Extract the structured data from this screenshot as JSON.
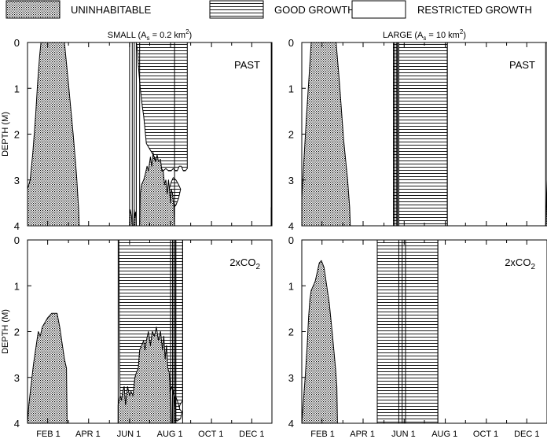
{
  "legend": [
    {
      "key": "uninhabitable",
      "label": "UNINHABITABLE",
      "fill": "dots"
    },
    {
      "key": "good",
      "label": "GOOD GROWTH",
      "fill": "lines"
    },
    {
      "key": "restricted",
      "label": "RESTRICTED GROWTH",
      "fill": "white"
    }
  ],
  "colors": {
    "stroke": "#000000",
    "background": "#ffffff",
    "stipple": "#000000"
  },
  "chart_data": [
    {
      "type": "area",
      "column_title": "SMALL (A_s = 0.2 km^2)",
      "title_parts": {
        "pre": "SMALL (A",
        "sub": "s",
        "mid": " = 0.2 km",
        "sup": "2",
        "post": ")"
      },
      "scenario": "PAST",
      "scenario_parts": {
        "main": "PAST",
        "sub": ""
      },
      "ylabel": "DEPTH (M)",
      "ylim": [
        0,
        4
      ],
      "y_ticks": [
        "0",
        "1",
        "2",
        "3",
        "4"
      ],
      "x_ticks": [
        "FEB 1",
        "APR 1",
        "JUN 1",
        "AUG 1",
        "OCT 1",
        "DEC 1"
      ],
      "show_xtick_labels": false,
      "uninhabitable": [
        [
          [
            1,
            3.2
          ],
          [
            5,
            3.0
          ],
          [
            9,
            2.4
          ],
          [
            13,
            1.6
          ],
          [
            16,
            0.9
          ],
          [
            19,
            0.3
          ],
          [
            21,
            0.0
          ],
          [
            56,
            0.0
          ],
          [
            62,
            0.9
          ],
          [
            69,
            2.0
          ],
          [
            74,
            2.9
          ],
          [
            77,
            3.6
          ],
          [
            78,
            4.0
          ],
          [
            1,
            4.0
          ]
        ],
        [
          [
            153,
            4.0
          ],
          [
            153,
            3.8
          ],
          [
            154,
            3.65
          ],
          [
            156,
            3.8
          ],
          [
            157,
            4.0
          ]
        ],
        [
          [
            159,
            4.0
          ],
          [
            160,
            3.65
          ],
          [
            161,
            3.8
          ],
          [
            162,
            3.7
          ],
          [
            163,
            4.0
          ]
        ],
        [
          [
            168,
            4.0
          ],
          [
            169,
            3.3
          ],
          [
            171,
            3.1
          ],
          [
            174,
            3.0
          ],
          [
            176,
            2.9
          ],
          [
            179,
            2.7
          ],
          [
            181,
            2.8
          ],
          [
            184,
            2.5
          ],
          [
            186,
            2.7
          ],
          [
            188,
            2.4
          ],
          [
            190,
            2.55
          ],
          [
            192,
            2.6
          ],
          [
            194,
            2.45
          ],
          [
            196,
            2.6
          ],
          [
            199,
            2.55
          ],
          [
            201,
            2.8
          ],
          [
            203,
            2.8
          ],
          [
            205,
            3.1
          ],
          [
            207,
            3.0
          ],
          [
            209,
            3.3
          ],
          [
            211,
            3.0
          ],
          [
            213,
            3.3
          ],
          [
            214,
            3.5
          ],
          [
            215,
            3.2
          ],
          [
            217,
            3.3
          ],
          [
            219,
            3.6
          ],
          [
            220,
            4.0
          ]
        ],
        [
          [
            364,
            4.0
          ],
          [
            364,
            3.6
          ],
          [
            365,
            4.0
          ]
        ]
      ],
      "good_growth": [
        [
          [
            150,
            0.0
          ],
          [
            239,
            0.0
          ],
          [
            239,
            2.75
          ],
          [
            236,
            2.8
          ],
          [
            233,
            2.8
          ],
          [
            230,
            2.7
          ],
          [
            227,
            2.7
          ],
          [
            224,
            2.8
          ],
          [
            221,
            2.8
          ],
          [
            218,
            2.75
          ],
          [
            215,
            2.8
          ],
          [
            211,
            2.8
          ],
          [
            207,
            2.75
          ],
          [
            203,
            2.8
          ],
          [
            198,
            2.7
          ],
          [
            195,
            2.7
          ],
          [
            190,
            2.5
          ],
          [
            186,
            2.4
          ],
          [
            182,
            2.3
          ],
          [
            178,
            2.2
          ],
          [
            176,
            1.9
          ],
          [
            174,
            1.6
          ],
          [
            172,
            1.4
          ],
          [
            169,
            1.0
          ],
          [
            166,
            0.5
          ],
          [
            165,
            0.2
          ],
          [
            163,
            0.0
          ]
        ],
        [
          [
            212,
            3.2
          ],
          [
            215,
            3.05
          ],
          [
            218,
            2.95
          ],
          [
            222,
            3.0
          ],
          [
            226,
            3.1
          ],
          [
            229,
            3.2
          ],
          [
            226,
            3.4
          ],
          [
            222,
            3.55
          ],
          [
            219,
            3.6
          ],
          [
            216,
            3.5
          ],
          [
            213,
            3.4
          ]
        ]
      ],
      "vertical_lines": [
        153,
        157,
        160,
        163,
        168,
        220,
        364
      ]
    },
    {
      "type": "area",
      "column_title": "LARGE (A_s = 10 km^2)",
      "title_parts": {
        "pre": "LARGE (A",
        "sub": "s",
        "mid": " = 10 km",
        "sup": "2",
        "post": ")"
      },
      "scenario": "PAST",
      "scenario_parts": {
        "main": "PAST",
        "sub": ""
      },
      "ylabel": "",
      "ylim": [
        0,
        4
      ],
      "y_ticks": [
        "0",
        "1",
        "2",
        "3",
        "4"
      ],
      "x_ticks": [
        "FEB 1",
        "APR 1",
        "JUN 1",
        "AUG 1",
        "OCT 1",
        "DEC 1"
      ],
      "show_xtick_labels": false,
      "uninhabitable": [
        [
          [
            1,
            4.0
          ],
          [
            1,
            3.4
          ],
          [
            4,
            2.6
          ],
          [
            8,
            1.6
          ],
          [
            12,
            0.7
          ],
          [
            15,
            0.0
          ],
          [
            52,
            0.0
          ],
          [
            57,
            0.9
          ],
          [
            63,
            2.1
          ],
          [
            69,
            3.0
          ],
          [
            72,
            3.6
          ],
          [
            73,
            4.0
          ]
        ],
        [
          [
            363,
            4.0
          ],
          [
            365,
            3.0
          ],
          [
            365,
            4.0
          ]
        ]
      ],
      "good_growth": [
        [
          [
            137,
            0.0
          ],
          [
            142,
            0.0
          ],
          [
            142,
            4.0
          ],
          [
            137,
            4.0
          ]
        ],
        [
          [
            145,
            0.0
          ],
          [
            217,
            0.0
          ],
          [
            217,
            4.0
          ],
          [
            145,
            4.0
          ]
        ]
      ],
      "vertical_lines": [
        137,
        139,
        142,
        143,
        145,
        217,
        363
      ]
    },
    {
      "type": "area",
      "column_title": "",
      "scenario": "2xCO2",
      "scenario_parts": {
        "main": "2xCO",
        "sub": "2"
      },
      "ylabel": "DEPTH (M)",
      "ylim": [
        0,
        4
      ],
      "y_ticks": [
        "0",
        "1",
        "2",
        "3",
        "4"
      ],
      "x_ticks": [
        "FEB 1",
        "APR 1",
        "JUN 1",
        "AUG 1",
        "OCT 1",
        "DEC 1"
      ],
      "show_xtick_labels": true,
      "uninhabitable": [
        [
          [
            1,
            4.0
          ],
          [
            3,
            3.6
          ],
          [
            6,
            3.2
          ],
          [
            10,
            2.7
          ],
          [
            14,
            2.3
          ],
          [
            17,
            2.0
          ],
          [
            20,
            2.1
          ],
          [
            23,
            1.9
          ],
          [
            27,
            1.8
          ],
          [
            31,
            1.7
          ],
          [
            37,
            1.6
          ],
          [
            45,
            1.6
          ],
          [
            49,
            1.9
          ],
          [
            53,
            2.3
          ],
          [
            56,
            2.6
          ],
          [
            59,
            2.8
          ],
          [
            60,
            4.0
          ]
        ],
        [
          [
            136,
            4.0
          ],
          [
            136,
            3.6
          ],
          [
            139,
            3.4
          ],
          [
            141,
            3.5
          ],
          [
            143,
            3.3
          ],
          [
            145,
            3.2
          ],
          [
            147,
            3.6
          ],
          [
            150,
            3.2
          ],
          [
            153,
            3.4
          ],
          [
            155,
            3.3
          ],
          [
            158,
            3.4
          ],
          [
            161,
            3.0
          ],
          [
            163,
            2.9
          ],
          [
            166,
            2.8
          ],
          [
            168,
            2.4
          ],
          [
            171,
            2.3
          ],
          [
            174,
            2.2
          ],
          [
            176,
            2.4
          ],
          [
            178,
            2.2
          ],
          [
            181,
            2.0
          ],
          [
            184,
            2.3
          ],
          [
            187,
            2.0
          ],
          [
            190,
            2.1
          ],
          [
            193,
            1.9
          ],
          [
            196,
            2.2
          ],
          [
            199,
            2.0
          ],
          [
            202,
            2.4
          ],
          [
            204,
            2.1
          ],
          [
            206,
            2.6
          ],
          [
            208,
            2.3
          ],
          [
            210,
            2.8
          ],
          [
            212,
            2.9
          ],
          [
            213,
            3.1
          ],
          [
            214,
            4.0
          ]
        ],
        [
          [
            216,
            4.0
          ],
          [
            217,
            3.3
          ],
          [
            219,
            3.4
          ],
          [
            221,
            3.7
          ],
          [
            222,
            4.0
          ]
        ]
      ],
      "good_growth": [
        [
          [
            136,
            0.0
          ],
          [
            232,
            0.0
          ],
          [
            232,
            3.5
          ],
          [
            228,
            3.6
          ],
          [
            225,
            3.8
          ],
          [
            222,
            3.6
          ],
          [
            220,
            3.6
          ],
          [
            218,
            3.3
          ],
          [
            216,
            3.2
          ],
          [
            214,
            3.3
          ],
          [
            212,
            2.95
          ],
          [
            210,
            2.85
          ],
          [
            208,
            2.4
          ],
          [
            206,
            2.7
          ],
          [
            204,
            2.2
          ],
          [
            202,
            2.5
          ],
          [
            199,
            2.0
          ],
          [
            196,
            2.3
          ],
          [
            193,
            2.0
          ],
          [
            190,
            2.15
          ],
          [
            187,
            2.0
          ],
          [
            184,
            2.35
          ],
          [
            181,
            2.05
          ],
          [
            178,
            2.3
          ],
          [
            176,
            2.45
          ],
          [
            174,
            2.25
          ],
          [
            171,
            2.35
          ],
          [
            168,
            2.45
          ],
          [
            166,
            2.8
          ],
          [
            163,
            2.95
          ],
          [
            161,
            3.0
          ],
          [
            158,
            3.45
          ],
          [
            155,
            3.35
          ],
          [
            153,
            3.45
          ],
          [
            150,
            3.25
          ],
          [
            147,
            3.65
          ],
          [
            145,
            3.25
          ],
          [
            143,
            3.35
          ],
          [
            141,
            3.5
          ],
          [
            139,
            3.45
          ],
          [
            138,
            2.4
          ],
          [
            137,
            0.0
          ]
        ],
        [
          [
            217,
            3.6
          ],
          [
            221,
            3.4
          ],
          [
            224,
            3.5
          ],
          [
            228,
            3.7
          ],
          [
            231,
            3.75
          ],
          [
            229,
            3.9
          ],
          [
            224,
            3.95
          ],
          [
            220,
            3.9
          ]
        ]
      ],
      "vertical_lines": [
        136,
        214,
        217,
        219,
        221,
        222,
        232
      ]
    },
    {
      "type": "area",
      "column_title": "",
      "scenario": "2xCO2",
      "scenario_parts": {
        "main": "2xCO",
        "sub": "2"
      },
      "ylabel": "",
      "ylim": [
        0,
        4
      ],
      "y_ticks": [
        "0",
        "1",
        "2",
        "3",
        "4"
      ],
      "x_ticks": [
        "FEB 1",
        "APR 1",
        "JUN 1",
        "AUG 1",
        "OCT 1",
        "DEC 1"
      ],
      "show_xtick_labels": true,
      "uninhabitable": [
        [
          [
            1,
            4.0
          ],
          [
            3,
            3.6
          ],
          [
            6,
            3.0
          ],
          [
            9,
            2.3
          ],
          [
            11,
            1.7
          ],
          [
            13,
            1.3
          ],
          [
            15,
            1.1
          ],
          [
            18,
            1.0
          ],
          [
            21,
            0.9
          ],
          [
            24,
            0.7
          ],
          [
            27,
            0.5
          ],
          [
            30,
            0.45
          ],
          [
            34,
            0.6
          ],
          [
            38,
            1.0
          ],
          [
            42,
            1.4
          ],
          [
            46,
            2.0
          ],
          [
            51,
            2.8
          ],
          [
            53,
            3.2
          ],
          [
            54,
            4.0
          ]
        ]
      ],
      "good_growth": [
        [
          [
            113,
            0.0
          ],
          [
            203,
            0.0
          ],
          [
            203,
            4.0
          ],
          [
            113,
            4.0
          ]
        ]
      ],
      "vertical_lines": [
        113,
        145,
        150,
        155,
        203
      ]
    }
  ]
}
